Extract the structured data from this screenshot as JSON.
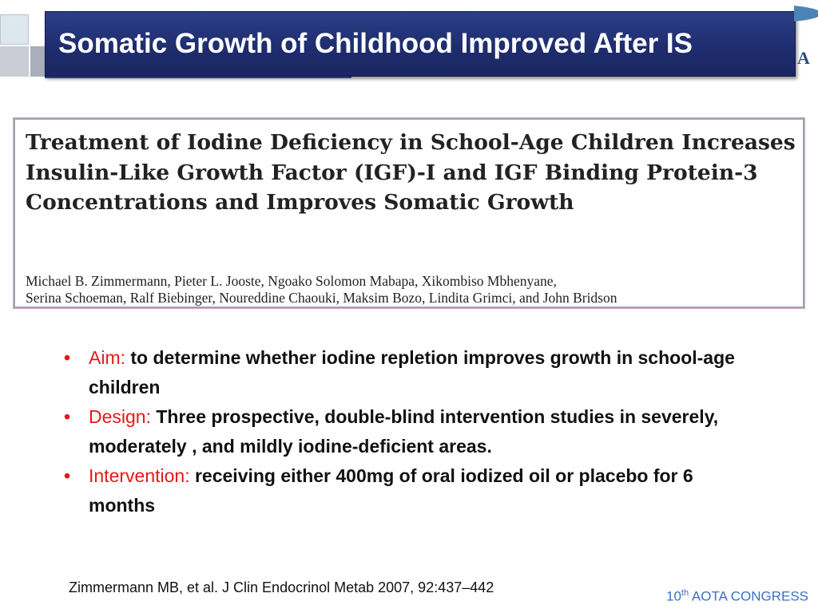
{
  "header": {
    "title": "Somatic Growth of Childhood Improved After IS"
  },
  "paper": {
    "title": "Treatment of Iodine Deficiency in School-Age Children Increases Insulin-Like Growth Factor (IGF)-I and IGF Binding Protein-3 Concentrations and Improves Somatic Growth",
    "authors_line1": "Michael B. Zimmermann, Pieter L. Jooste, Ngoako Solomon Mabapa, Xikombiso Mbhenyane,",
    "authors_line2": "Serina Schoeman, Ralf Biebinger, Noureddine Chaouki, Maksim Bozo, Lindita Grimci, and John Bridson"
  },
  "bullets": [
    {
      "label": "Aim:",
      "text": "to determine whether iodine repletion improves growth in school-age children"
    },
    {
      "label": "Design:",
      "text": "Three prospective, double-blind intervention studies in severely, moderately , and mildly iodine-deficient areas."
    },
    {
      "label": "Intervention:",
      "text": "receiving either 400mg of oral iodized oil or placebo for 6 months"
    }
  ],
  "citation": "Zimmermann MB, et al. J Clin Endocrinol Metab 2007, 92:437–442",
  "footer": {
    "congress_num": "10",
    "congress_sup": "th",
    "congress_text": "AOTA CONGRESS"
  },
  "colors": {
    "title_bar": "#1e2c6d",
    "label_red": "#e31a1a",
    "footer_blue": "#3a6fc4"
  },
  "icons": {
    "bullet": "•",
    "logo_mark": "A"
  }
}
